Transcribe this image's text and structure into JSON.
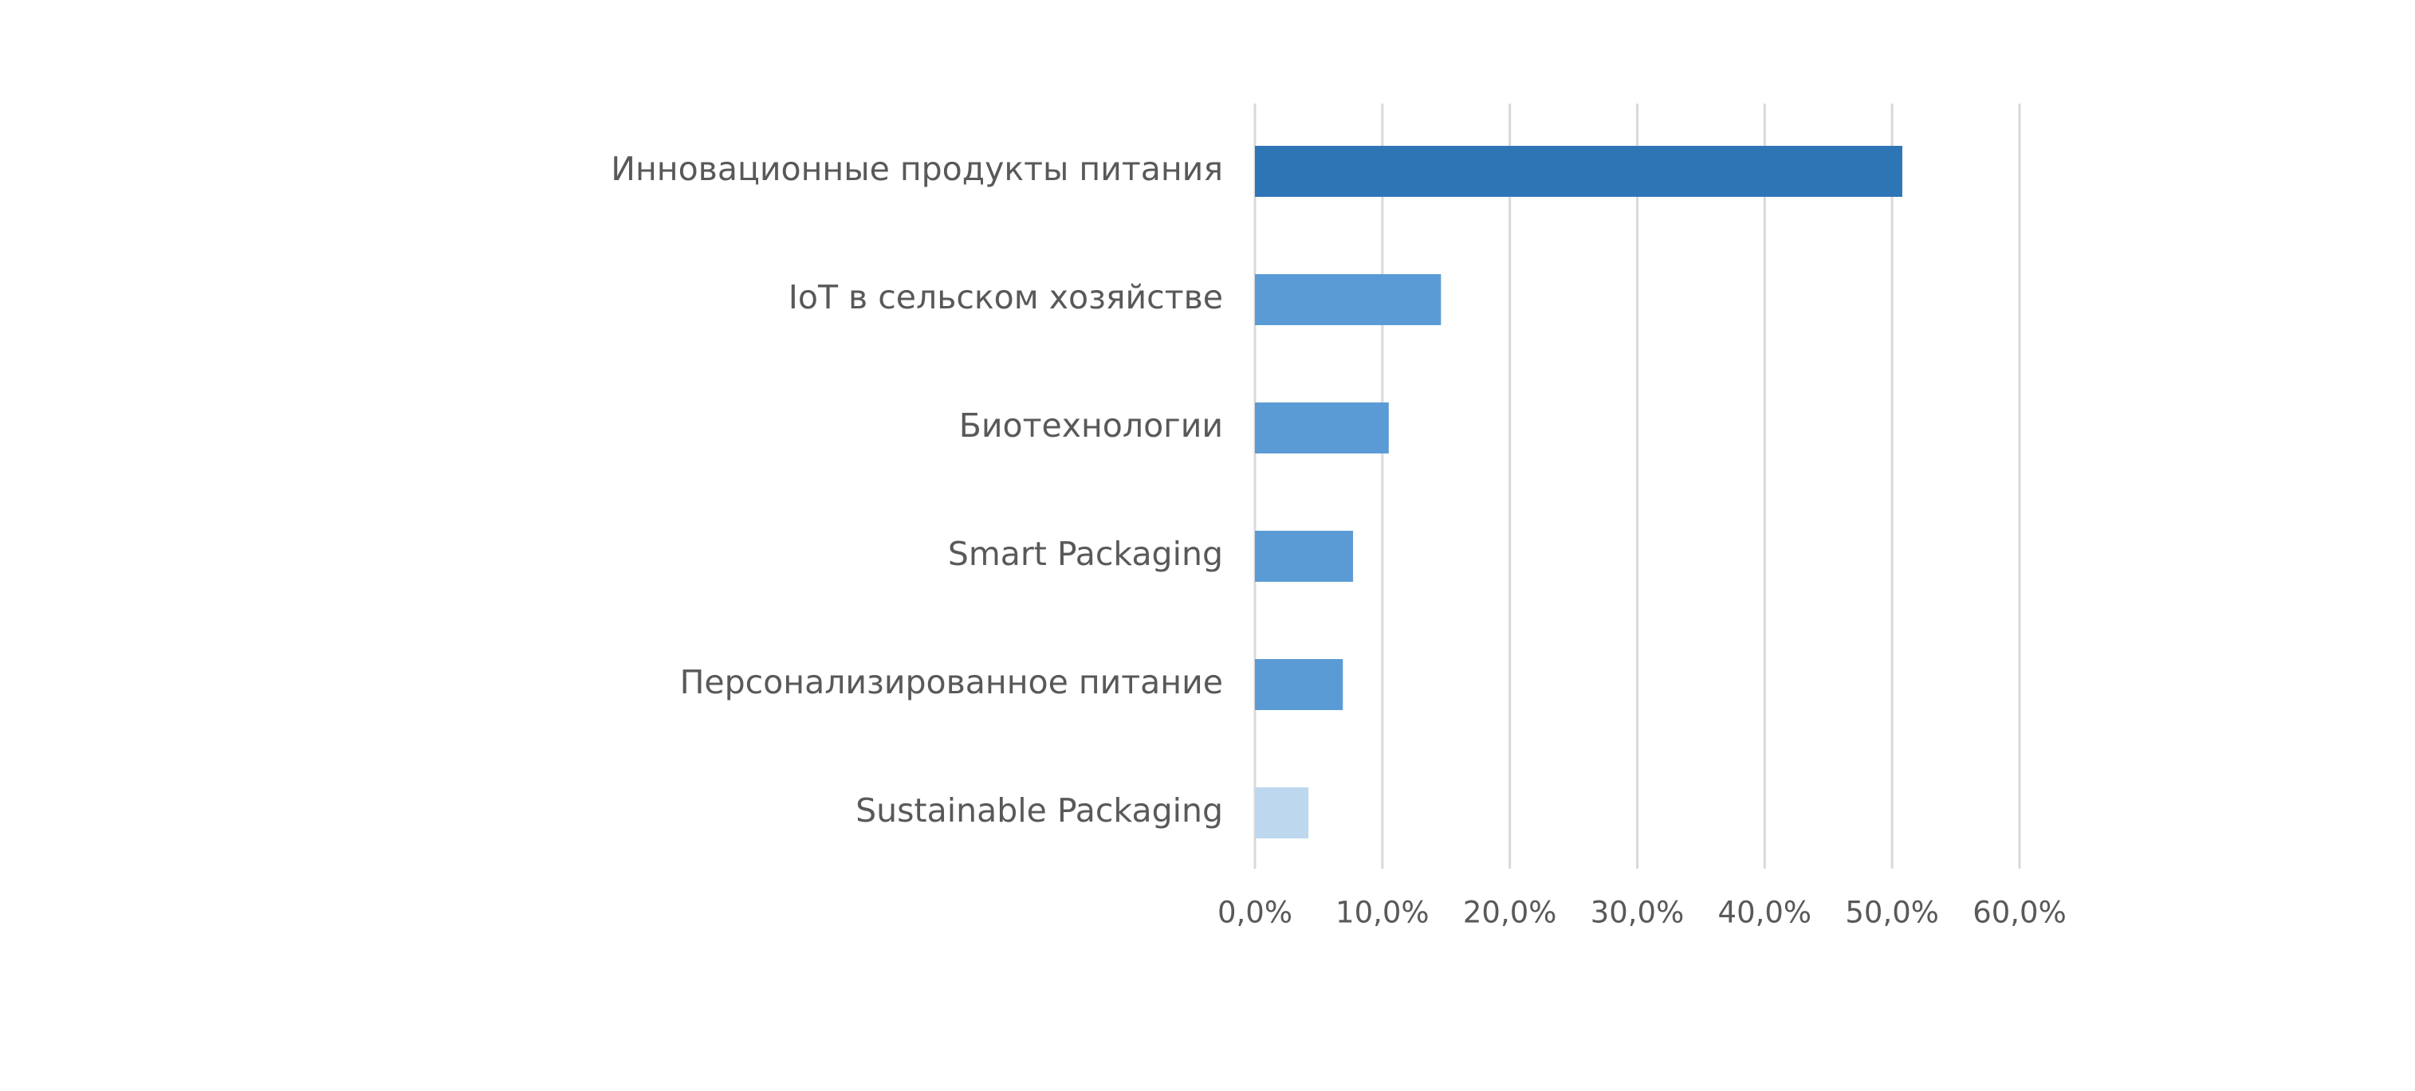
{
  "chart_data": {
    "type": "bar",
    "orientation": "horizontal",
    "categories": [
      "Инновационные продукты питания",
      "IoT в сельском хозяйстве",
      "Биотехнологии",
      "Smart Packaging",
      "Персонализированное питание",
      "Sustainable Packaging"
    ],
    "values": [
      50.8,
      14.6,
      10.5,
      7.7,
      6.9,
      4.2
    ],
    "bar_colors": [
      "#2e75b6",
      "#5b9bd5",
      "#5b9bd5",
      "#5b9bd5",
      "#5b9bd5",
      "#bdd7ee"
    ],
    "xlim": [
      0,
      60
    ],
    "ticks": [
      0,
      10,
      20,
      30,
      40,
      50,
      60
    ],
    "tick_labels": [
      "0,0%",
      "10,0%",
      "20,0%",
      "30,0%",
      "40,0%",
      "50,0%",
      "60,0%"
    ],
    "grid": true,
    "title": "",
    "xlabel": "",
    "ylabel": ""
  }
}
